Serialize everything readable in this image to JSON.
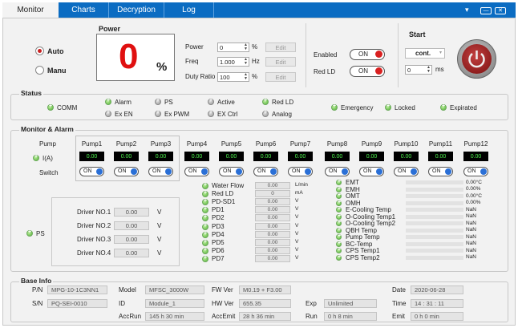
{
  "tabs": [
    {
      "label": "Monitor"
    },
    {
      "label": "Charts"
    },
    {
      "label": "Decryption"
    },
    {
      "label": "Log"
    }
  ],
  "window": {
    "dropdown": "▾",
    "minimize": "—",
    "close": "✕"
  },
  "mode": {
    "auto": "Auto",
    "manu": "Manu"
  },
  "power": {
    "title": "Power",
    "value": "0",
    "unit": "%",
    "rows": [
      {
        "label": "Power",
        "value": "0",
        "unit": "%",
        "edit": "Edit"
      },
      {
        "label": "Freq",
        "value": "1.000",
        "unit": "Hz",
        "edit": "Edit"
      },
      {
        "label": "Duty Ratio",
        "value": "100",
        "unit": "%",
        "edit": "Edit"
      }
    ]
  },
  "enabled": {
    "label": "Enabled",
    "state": "ON"
  },
  "redld": {
    "label": "Red LD",
    "state": "ON"
  },
  "start": {
    "title": "Start",
    "mode": "cont.",
    "time_value": "0",
    "time_unit": "ms"
  },
  "status": {
    "title": "Status",
    "items": [
      {
        "label": "COMM"
      },
      {
        "label": "Alarm"
      },
      {
        "label": "Ex EN"
      },
      {
        "label": "PS"
      },
      {
        "label": "Ex PWM"
      },
      {
        "label": "Active"
      },
      {
        "label": "EX Ctrl"
      },
      {
        "label": "Red LD"
      },
      {
        "label": "Analog"
      },
      {
        "label": "Emergency"
      },
      {
        "label": "Locked"
      },
      {
        "label": "Expirated"
      }
    ]
  },
  "monitor": {
    "title": "Monitor & Alarm",
    "pump_label": "Pump",
    "ia_label": "I(A)",
    "switch_label": "Switch",
    "switch_state": "ON",
    "pumps": [
      {
        "name": "Pump1",
        "value": "0.00"
      },
      {
        "name": "Pump2",
        "value": "0.00"
      },
      {
        "name": "Pump3",
        "value": "0.00"
      },
      {
        "name": "Pump4",
        "value": "0.00"
      },
      {
        "name": "Pump5",
        "value": "0.00"
      },
      {
        "name": "Pump6",
        "value": "0.00"
      },
      {
        "name": "Pump7",
        "value": "0.00"
      },
      {
        "name": "Pump8",
        "value": "0.00"
      },
      {
        "name": "Pump9",
        "value": "0.00"
      },
      {
        "name": "Pump10",
        "value": "0.00"
      },
      {
        "name": "Pump11",
        "value": "0.00"
      },
      {
        "name": "Pump12",
        "value": "0.00"
      }
    ],
    "ps_label": "PS",
    "drivers": [
      {
        "label": "Driver NO.1",
        "value": "0.00",
        "unit": "V"
      },
      {
        "label": "Driver NO.2",
        "value": "0.00",
        "unit": "V"
      },
      {
        "label": "Driver NO.3",
        "value": "0.00",
        "unit": "V"
      },
      {
        "label": "Driver NO.4",
        "value": "0.00",
        "unit": "V"
      }
    ],
    "sensors": [
      {
        "label": "Water Flow",
        "value": "0.00",
        "unit": "L/min"
      },
      {
        "label": "Red LD",
        "value": "0",
        "unit": "mA"
      },
      {
        "label": "PD-SD1",
        "value": "0.00",
        "unit": "V"
      },
      {
        "label": "PD1",
        "value": "0.00",
        "unit": "V"
      },
      {
        "label": "PD2",
        "value": "0.00",
        "unit": "V"
      },
      {
        "label": "PD3",
        "value": "0.00",
        "unit": "V"
      },
      {
        "label": "PD4",
        "value": "0.00",
        "unit": "V"
      },
      {
        "label": "PD5",
        "value": "0.00",
        "unit": "V"
      },
      {
        "label": "PD6",
        "value": "0.00",
        "unit": "V"
      },
      {
        "label": "PD7",
        "value": "0.00",
        "unit": "V"
      }
    ],
    "temps": [
      {
        "label": "EMT",
        "value": "0.00°C"
      },
      {
        "label": "EMH",
        "value": "0.00%"
      },
      {
        "label": "OMT",
        "value": "0.00°C"
      },
      {
        "label": "OMH",
        "value": "0.00%"
      },
      {
        "label": "E-Cooling Temp",
        "value": "NaN"
      },
      {
        "label": "O-Cooling Temp1",
        "value": "NaN"
      },
      {
        "label": "O-Cooling Temp2",
        "value": "NaN"
      },
      {
        "label": "QBH Temp",
        "value": "NaN"
      },
      {
        "label": "Pump Temp",
        "value": "NaN"
      },
      {
        "label": "BC-Temp",
        "value": "NaN"
      },
      {
        "label": "CPS Temp1",
        "value": "NaN"
      },
      {
        "label": "CPS Temp2",
        "value": "NaN"
      }
    ]
  },
  "base": {
    "title": "Base Info",
    "pn_label": "P/N",
    "pn": "MPG-10-1C3NN1",
    "sn_label": "S/N",
    "sn": "PQ-SEI-0010",
    "model_label": "Model",
    "model": "MFSC_3000W",
    "id_label": "ID",
    "id": "Module_1",
    "accrun_label": "AccRun",
    "accrun": "145 h 30 min",
    "fw_label": "FW Ver",
    "fw": "M0.19 + F3.00",
    "hw_label": "HW Ver",
    "hw": "655.35",
    "accemit_label": "AccEmit",
    "accemit": "28 h 36 min",
    "exp_label": "Exp",
    "exp": "Unlimited",
    "run_label": "Run",
    "run": "0 h 8 min",
    "date_label": "Date",
    "date": "2020-06-28",
    "time_label": "Time",
    "time": "14 : 31 : 11",
    "emit_label": "Emit",
    "emit": "0 h 0 min"
  }
}
